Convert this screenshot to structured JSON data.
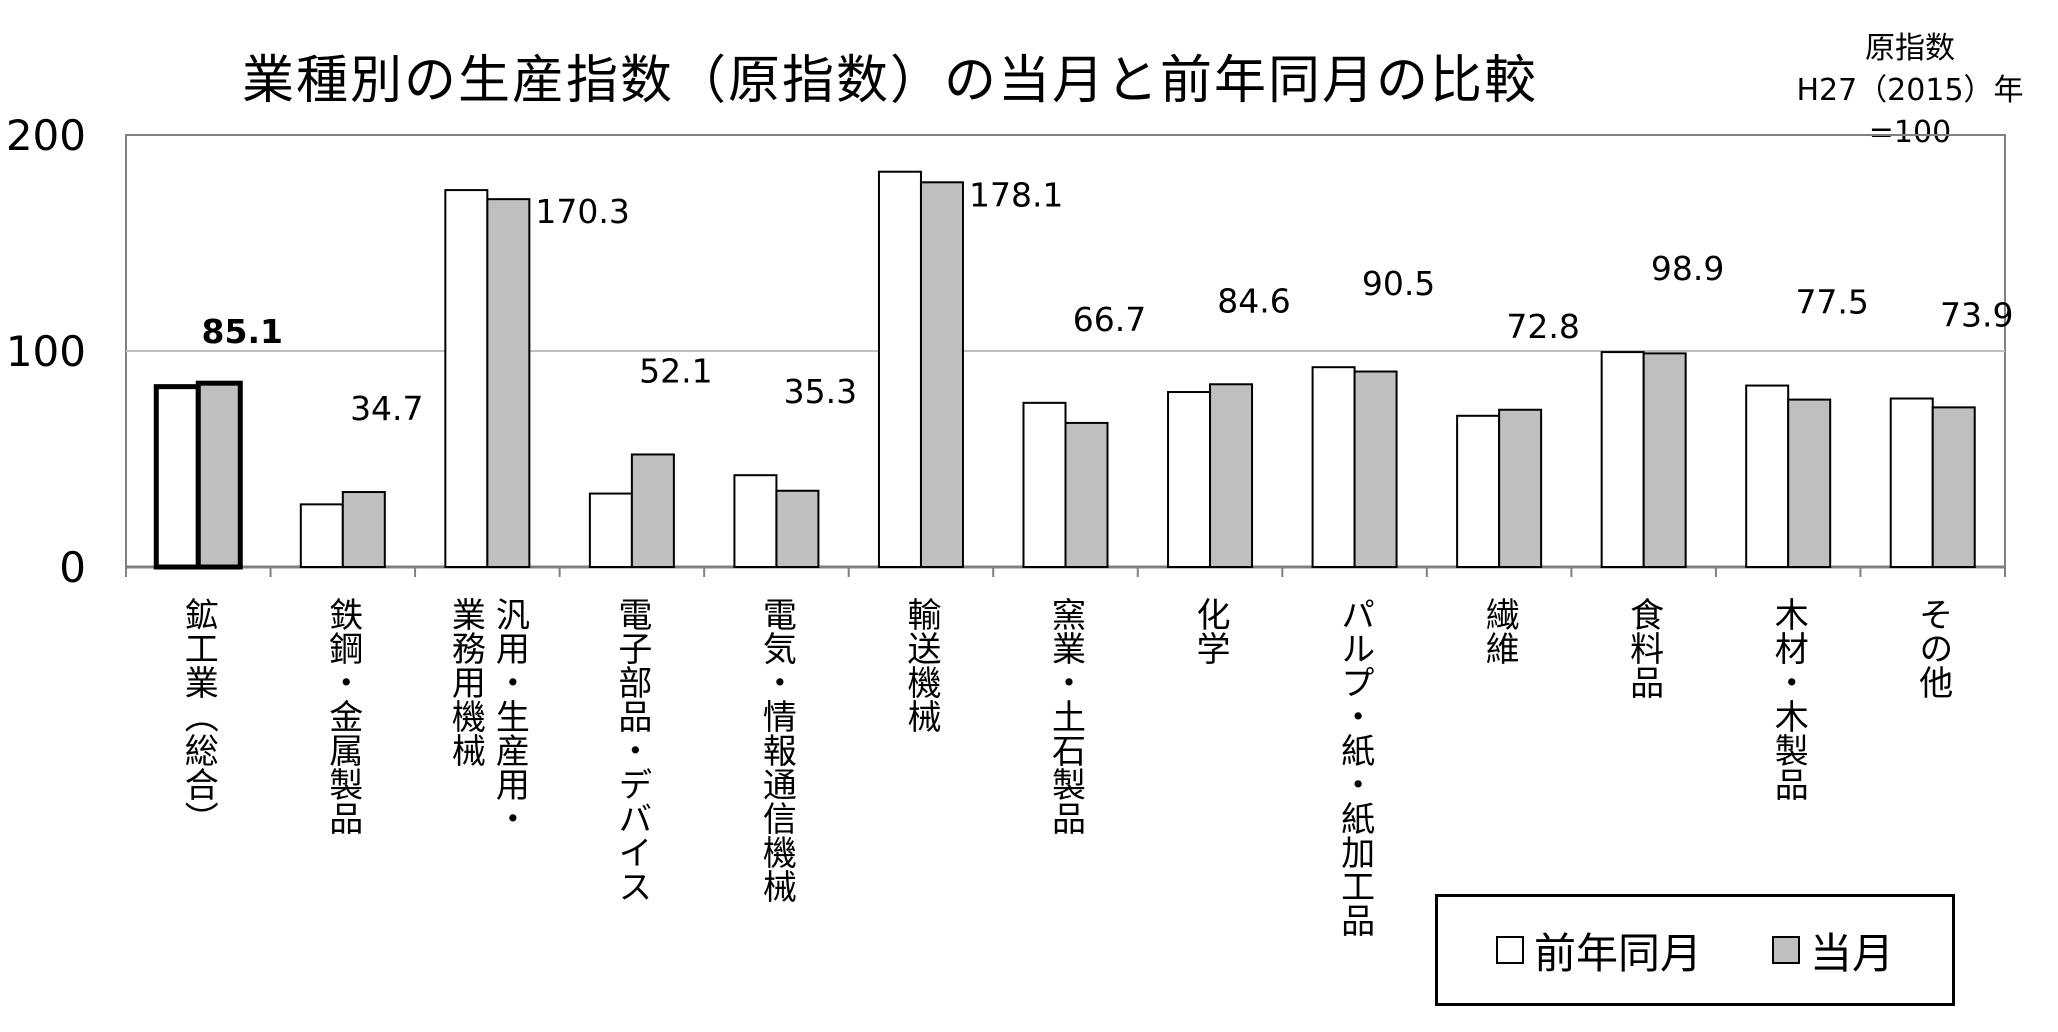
{
  "title": "業種別の生産指数（原指数）の当月と前年同月の比較",
  "unit_note": [
    "原指数",
    "H27（2015）年=100"
  ],
  "colors": {
    "prev": "#ffffff",
    "curr": "#bfbfbf",
    "grid": "#bfbfbf",
    "axis": "#808080"
  },
  "chart_data": {
    "type": "bar",
    "ylim": [
      0,
      200
    ],
    "yticks": [
      0,
      100,
      200
    ],
    "grid": true,
    "legend_position": "bottom-right",
    "categories": [
      "鉱工業（総合）",
      "鉄鋼・金属製品",
      "汎用・生産用・業務用機械",
      "電子部品・デバイス",
      "電気・情報通信機械",
      "輸送機械",
      "窯業・土石製品",
      "化学",
      "パルプ・紙・紙加工品",
      "繊維",
      "食料品",
      "木材・木製品",
      "その他"
    ],
    "series": [
      {
        "name": "前年同月",
        "values": [
          83.5,
          29.0,
          174.5,
          34.0,
          42.5,
          183.0,
          76.0,
          81.0,
          92.5,
          70.0,
          99.5,
          84.0,
          78.0
        ]
      },
      {
        "name": "当月",
        "values": [
          85.1,
          34.7,
          170.3,
          52.1,
          35.3,
          178.1,
          66.7,
          84.6,
          90.5,
          72.8,
          98.9,
          77.5,
          73.9
        ]
      }
    ],
    "data_labels": [
      "85.1",
      "34.7",
      "170.3",
      "52.1",
      "35.3",
      "178.1",
      "66.7",
      "84.6",
      "90.5",
      "72.8",
      "98.9",
      "77.5",
      "73.9"
    ]
  }
}
